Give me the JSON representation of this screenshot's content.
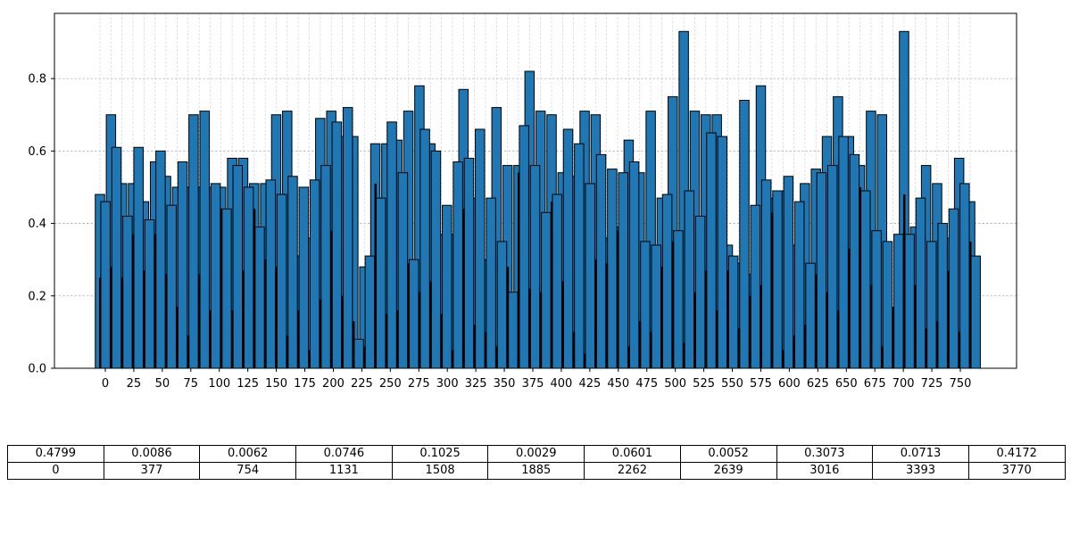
{
  "chart_data": {
    "type": "bar",
    "title": "",
    "xlabel": "",
    "ylabel": "",
    "ylim": [
      0,
      0.98
    ],
    "yticks": [
      "0.0",
      "0.2",
      "0.4",
      "0.6",
      "0.8"
    ],
    "grid": true,
    "bar_color": "#1f77b4",
    "bar_edge_color": "#000000",
    "n_bars": 80,
    "x_tick_step": 5,
    "main_series": [
      0.48,
      0.7,
      0.51,
      0.51,
      0.46,
      0.57,
      0.53,
      0.5,
      0.5,
      0.5,
      0.5,
      0.5,
      0.58,
      0.58,
      0.51,
      0.51,
      0.7,
      0.71,
      0.31,
      0.36,
      0.69,
      0.71,
      0.64,
      0.64,
      0.28,
      0.62,
      0.62,
      0.63,
      0.71,
      0.78,
      0.62,
      0.37,
      0.37,
      0.77,
      0.47,
      0.3,
      0.72,
      0.56,
      0.56,
      0.82,
      0.71,
      0.7,
      0.54,
      0.53,
      0.71,
      0.7,
      0.36,
      0.39,
      0.63,
      0.54,
      0.71,
      0.47,
      0.75,
      0.93,
      0.71,
      0.7,
      0.7,
      0.34,
      0.29,
      0.26,
      0.78,
      0.47,
      0.49,
      0.34,
      0.51,
      0.55,
      0.64,
      0.75,
      0.64,
      0.56,
      0.71,
      0.7,
      0.05,
      0.93,
      0.39,
      0.56,
      0.51,
      0.36,
      0.58,
      0.46
    ],
    "overlay_series": [
      0.25,
      0.28,
      0.25,
      0.37,
      0.27,
      0.37,
      0.26,
      0.17,
      0.09,
      0.26,
      0.16,
      0.44,
      0.16,
      0.27,
      0.44,
      0.3,
      0.28,
      0.09,
      0.16,
      0.05,
      0.19,
      0.38,
      0.2,
      0.13,
      0.06,
      0.51,
      0.15,
      0.16,
      0.29,
      0.21,
      0.24,
      0.15,
      0.05,
      0.44,
      0.12,
      0.1,
      0.06,
      0.28,
      0.54,
      0.22,
      0.21,
      0.46,
      0.24,
      0.1,
      0.04,
      0.3,
      0.29,
      0.38,
      0.06,
      0.13,
      0.1,
      0.28,
      0.35,
      0.07,
      0.21,
      0.27,
      0.16,
      0.27,
      0.11,
      0.2,
      0.23,
      0.43,
      0.05,
      0.09,
      0.12,
      0.26,
      0.21,
      0.16,
      0.33,
      0.5,
      0.23,
      0.06,
      0.17,
      0.48,
      0.23,
      0.11,
      0.13,
      0.27,
      0.1,
      0.35
    ],
    "main_series_2": [
      0.46,
      0.61,
      0.42,
      0.61,
      0.41,
      0.6,
      0.45,
      0.57,
      0.7,
      0.71,
      0.51,
      0.44,
      0.56,
      0.5,
      0.39,
      0.52,
      0.48,
      0.53,
      0.5,
      0.52,
      0.56,
      0.68,
      0.72,
      0.08,
      0.31,
      0.47,
      0.68,
      0.54,
      0.3,
      0.66,
      0.6,
      0.45,
      0.57,
      0.58,
      0.66,
      0.47,
      0.35,
      0.21,
      0.67,
      0.56,
      0.43,
      0.48,
      0.66,
      0.62,
      0.51,
      0.59,
      0.55,
      0.54,
      0.57,
      0.35,
      0.34,
      0.48,
      0.38,
      0.49,
      0.42,
      0.65,
      0.64,
      0.31,
      0.74,
      0.45,
      0.52,
      0.49,
      0.53,
      0.46,
      0.29,
      0.54,
      0.56,
      0.64,
      0.59,
      0.49,
      0.38,
      0.35,
      0.37,
      0.37,
      0.47,
      0.35,
      0.4,
      0.44,
      0.51,
      0.31
    ],
    "table": {
      "values": [
        "0.4799",
        "0.0086",
        "0.0062",
        "0.0746",
        "0.1025",
        "0.0029",
        "0.0601",
        "0.0052",
        "0.3073",
        "0.0713",
        "0.4172"
      ],
      "indices": [
        "0",
        "377",
        "754",
        "1131",
        "1508",
        "1885",
        "2262",
        "2639",
        "3016",
        "3393",
        "3770"
      ]
    }
  }
}
